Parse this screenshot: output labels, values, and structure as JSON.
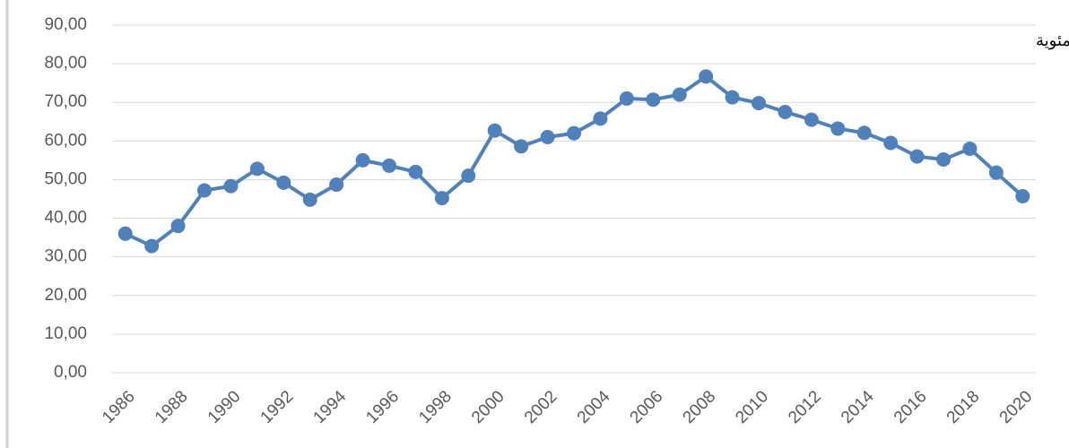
{
  "chart_data": {
    "type": "line",
    "annotation": "الوحدة: نسبة مئوية",
    "x": [
      1986,
      1987,
      1988,
      1989,
      1990,
      1991,
      1992,
      1993,
      1994,
      1995,
      1996,
      1997,
      1998,
      1999,
      2000,
      2001,
      2002,
      2003,
      2004,
      2005,
      2006,
      2007,
      2008,
      2009,
      2010,
      2011,
      2012,
      2013,
      2014,
      2015,
      2016,
      2017,
      2018,
      2019,
      2020
    ],
    "series": [
      {
        "color": "#4f81bd",
        "values": [
          36,
          32.8,
          38,
          47.2,
          48.3,
          52.8,
          49.2,
          44.8,
          48.7,
          55,
          53.6,
          52,
          45.2,
          51,
          62.7,
          58.6,
          61,
          62,
          65.8,
          71,
          70.7,
          72,
          76.7,
          71.3,
          69.8,
          67.5,
          65.5,
          63.2,
          62.1,
          59.5,
          56,
          55.2,
          58,
          51.8,
          45.7
        ]
      }
    ],
    "xlim": [
      1985.5,
      2020.5
    ],
    "xticks": [
      1986,
      1988,
      1990,
      1992,
      1994,
      1996,
      1998,
      2000,
      2002,
      2004,
      2006,
      2008,
      2010,
      2012,
      2014,
      2016,
      2018,
      2020
    ],
    "ylim": [
      0,
      90
    ],
    "yticks": [
      {
        "value": 0,
        "label": "0,00"
      },
      {
        "value": 10,
        "label": "10,00"
      },
      {
        "value": 20,
        "label": "20,00"
      },
      {
        "value": 30,
        "label": "30,00"
      },
      {
        "value": 40,
        "label": "40,00"
      },
      {
        "value": 50,
        "label": "50,00"
      },
      {
        "value": 60,
        "label": "60,00"
      },
      {
        "value": 70,
        "label": "70,00"
      },
      {
        "value": 80,
        "label": "80,00"
      },
      {
        "value": 90,
        "label": "90,00"
      }
    ],
    "grid": true
  }
}
